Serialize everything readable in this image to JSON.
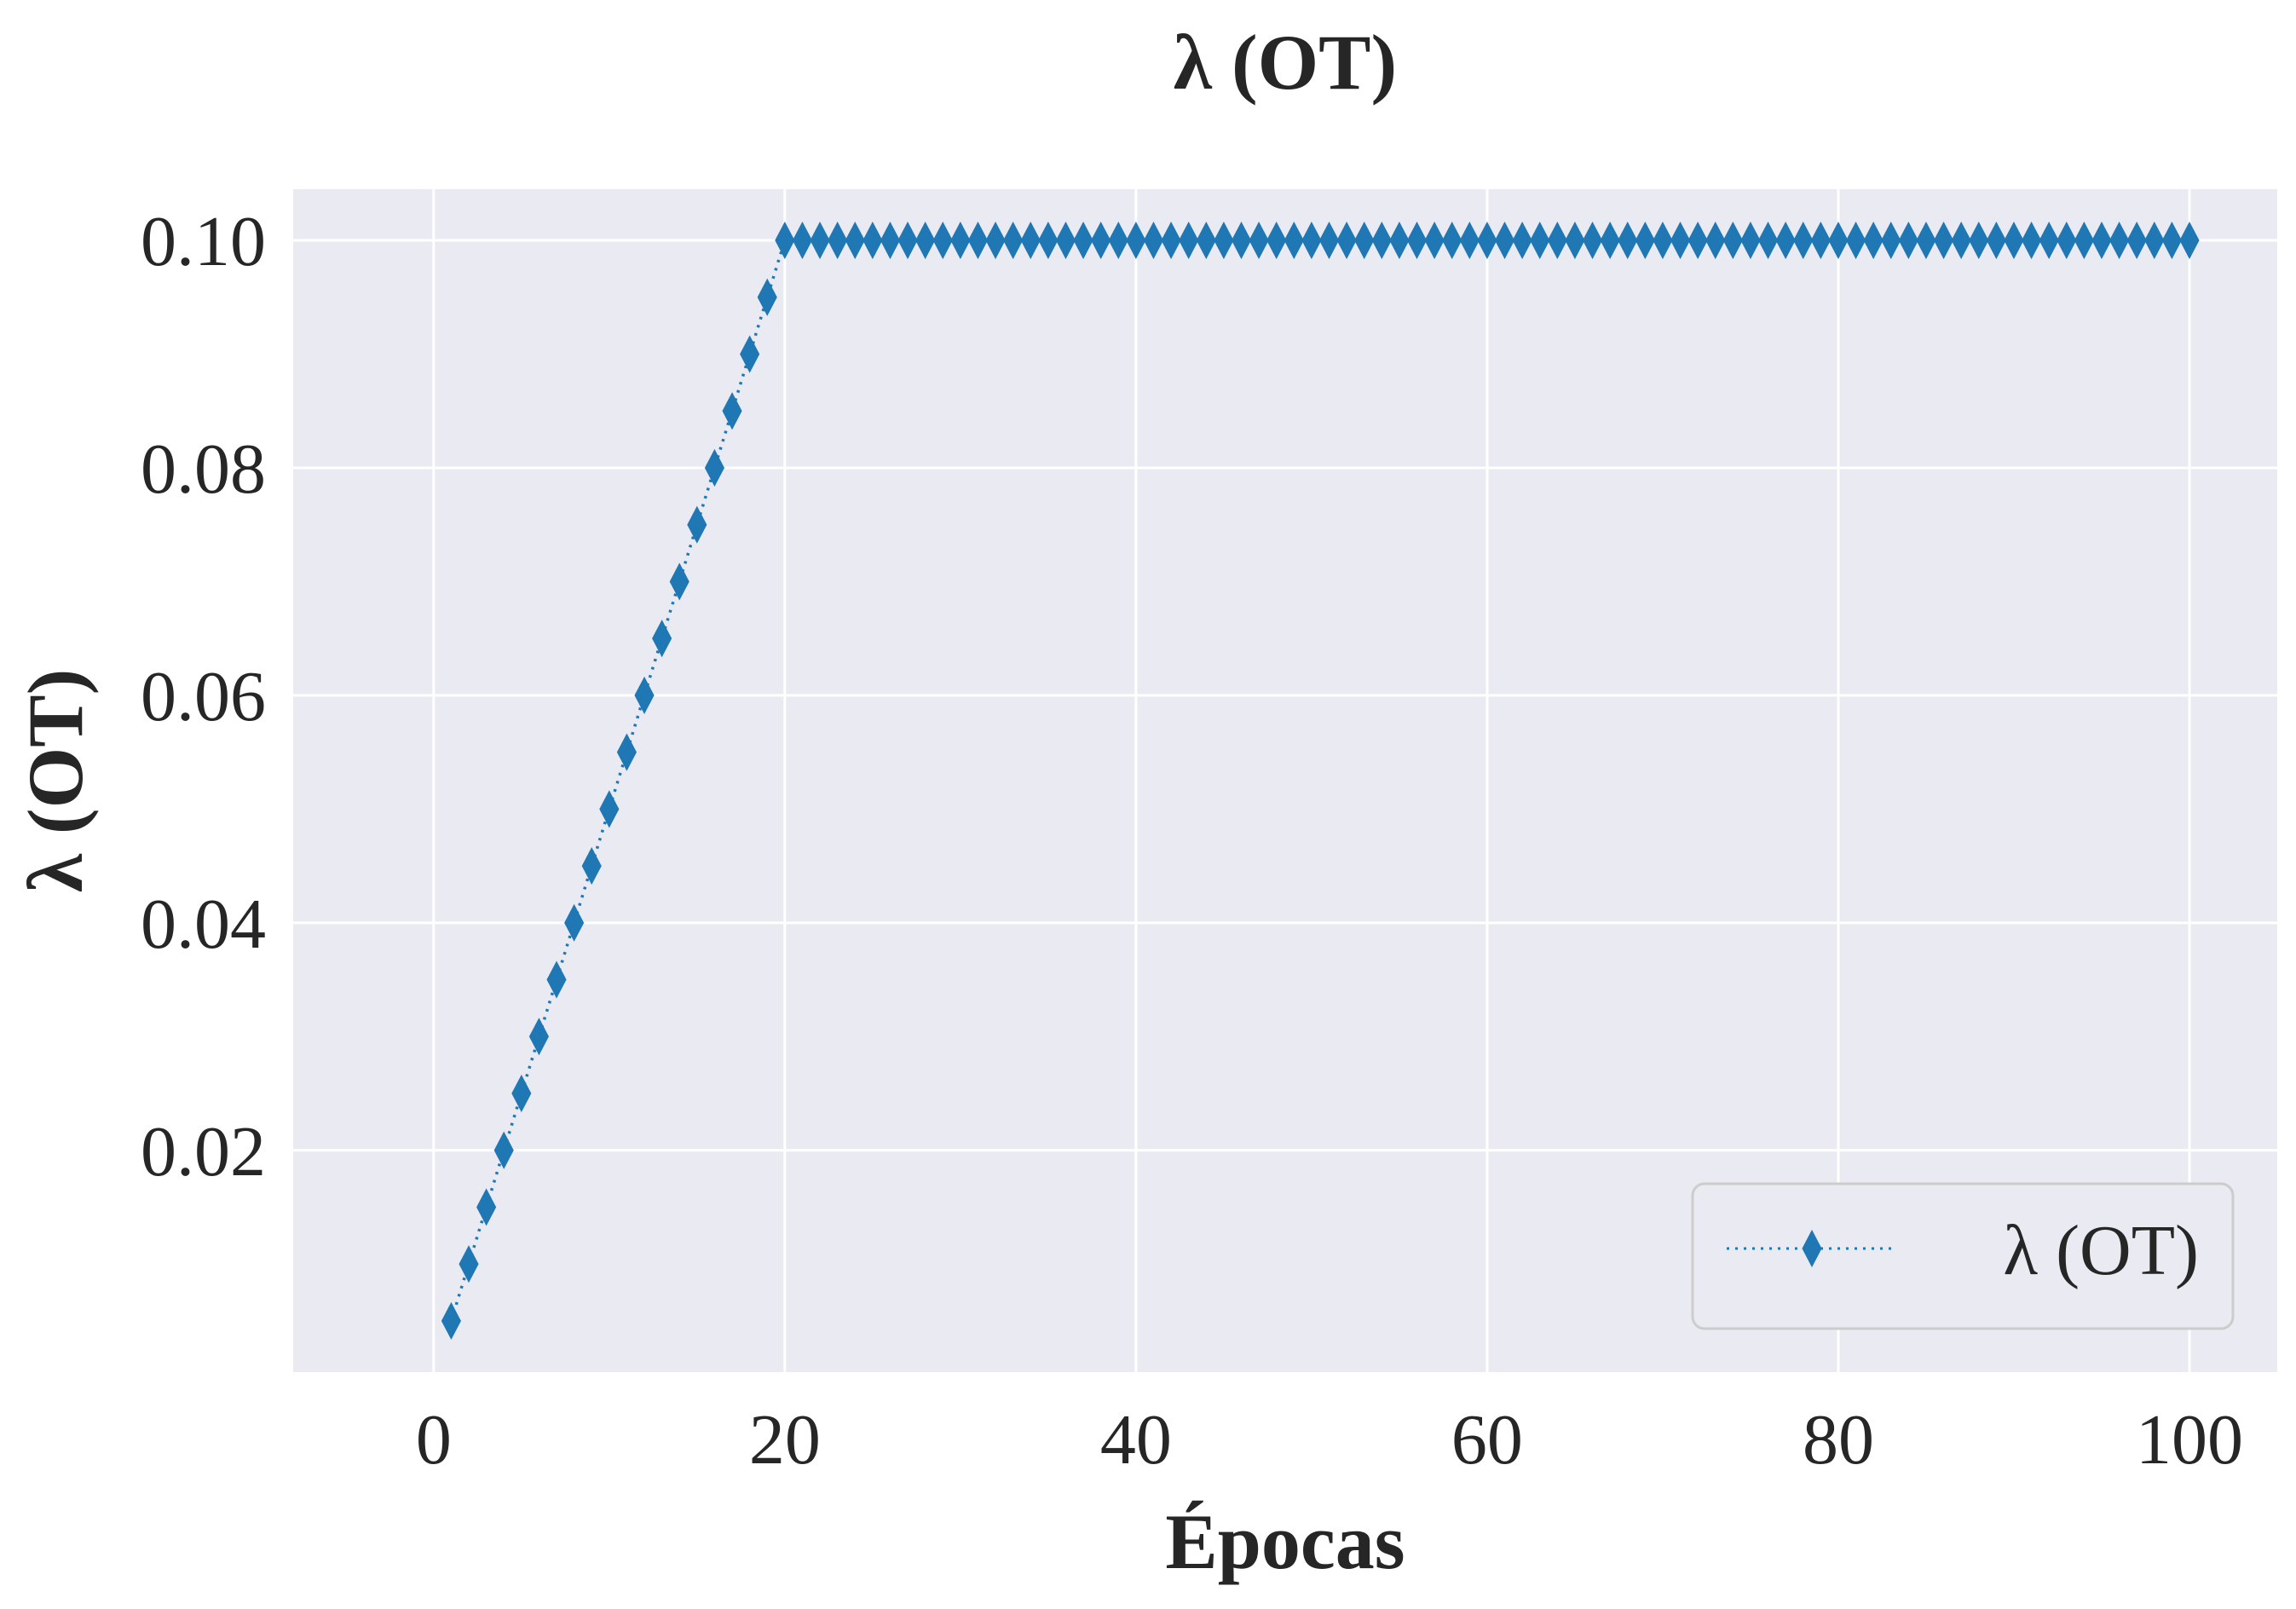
{
  "chart_data": {
    "type": "line",
    "title": "λ (OT)",
    "xlabel": "Épocas",
    "ylabel": "λ (OT)",
    "xlim": [
      -8,
      105
    ],
    "ylim": [
      0.0005,
      0.1045
    ],
    "xticks": [
      0,
      20,
      40,
      60,
      80,
      100
    ],
    "xtick_labels": [
      "0",
      "20",
      "40",
      "60",
      "80",
      "100"
    ],
    "yticks": [
      0.02,
      0.04,
      0.06,
      0.08,
      0.1
    ],
    "ytick_labels": [
      "0.02",
      "0.04",
      "0.06",
      "0.08",
      "0.10"
    ],
    "grid": true,
    "legend_position": "bottom-right",
    "series": [
      {
        "name": "λ (OT)",
        "color": "#1f77b4",
        "line_style": "dotted",
        "marker": "thin-diamond",
        "x": [
          1,
          2,
          3,
          4,
          5,
          6,
          7,
          8,
          9,
          10,
          11,
          12,
          13,
          14,
          15,
          16,
          17,
          18,
          19,
          20,
          21,
          22,
          23,
          24,
          25,
          26,
          27,
          28,
          29,
          30,
          31,
          32,
          33,
          34,
          35,
          36,
          37,
          38,
          39,
          40,
          41,
          42,
          43,
          44,
          45,
          46,
          47,
          48,
          49,
          50,
          51,
          52,
          53,
          54,
          55,
          56,
          57,
          58,
          59,
          60,
          61,
          62,
          63,
          64,
          65,
          66,
          67,
          68,
          69,
          70,
          71,
          72,
          73,
          74,
          75,
          76,
          77,
          78,
          79,
          80,
          81,
          82,
          83,
          84,
          85,
          86,
          87,
          88,
          89,
          90,
          91,
          92,
          93,
          94,
          95,
          96,
          97,
          98,
          99,
          100
        ],
        "y": [
          0.005,
          0.01,
          0.015,
          0.02,
          0.025,
          0.03,
          0.035,
          0.04,
          0.045,
          0.05,
          0.055,
          0.06,
          0.065,
          0.07,
          0.075,
          0.08,
          0.085,
          0.09,
          0.095,
          0.1,
          0.1,
          0.1,
          0.1,
          0.1,
          0.1,
          0.1,
          0.1,
          0.1,
          0.1,
          0.1,
          0.1,
          0.1,
          0.1,
          0.1,
          0.1,
          0.1,
          0.1,
          0.1,
          0.1,
          0.1,
          0.1,
          0.1,
          0.1,
          0.1,
          0.1,
          0.1,
          0.1,
          0.1,
          0.1,
          0.1,
          0.1,
          0.1,
          0.1,
          0.1,
          0.1,
          0.1,
          0.1,
          0.1,
          0.1,
          0.1,
          0.1,
          0.1,
          0.1,
          0.1,
          0.1,
          0.1,
          0.1,
          0.1,
          0.1,
          0.1,
          0.1,
          0.1,
          0.1,
          0.1,
          0.1,
          0.1,
          0.1,
          0.1,
          0.1,
          0.1,
          0.1,
          0.1,
          0.1,
          0.1,
          0.1,
          0.1,
          0.1,
          0.1,
          0.1,
          0.1,
          0.1,
          0.1,
          0.1,
          0.1,
          0.1,
          0.1,
          0.1,
          0.1,
          0.1,
          0.1
        ]
      }
    ],
    "colors": {
      "plot_background": "#eaeaf2",
      "grid": "#ffffff",
      "text": "#262626"
    }
  }
}
